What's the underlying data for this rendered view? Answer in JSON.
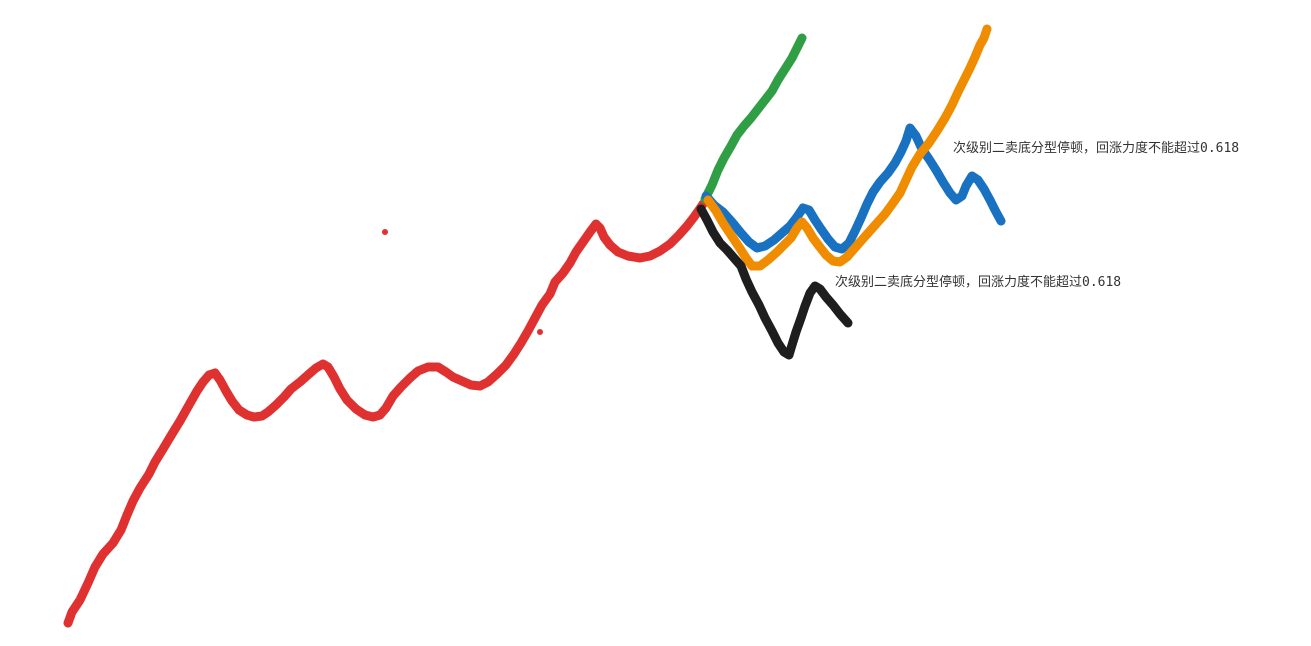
{
  "colors": {
    "main_trend": "#e03131",
    "green_path": "#2f9e44",
    "blue_path": "#1971c2",
    "orange_path": "#f08c00",
    "black_path": "#1e1e1e",
    "text": "#333333"
  },
  "annotations": {
    "upper": "次级别二卖底分型停顿，回涨力度不能超过0.618",
    "lower": "次级别二卖底分型停顿，回涨力度不能超过0.618"
  }
}
